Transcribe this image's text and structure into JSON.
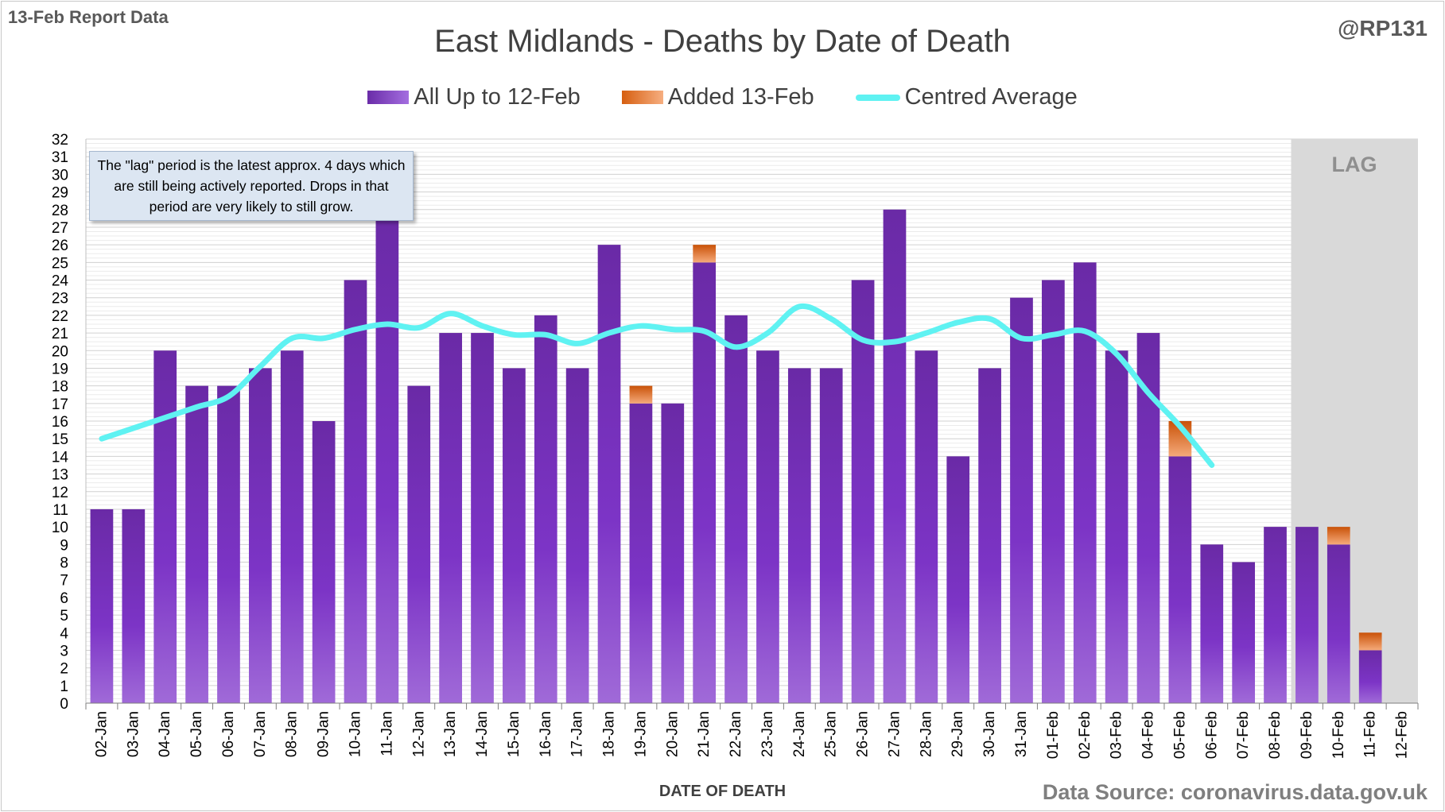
{
  "header": {
    "report_tag": "13-Feb Report Data",
    "author": "@RP131"
  },
  "note": "The \"lag\" period is the latest approx. 4 days which are still being actively reported.  Drops in that period are very likely to still grow.",
  "lag_label": "LAG",
  "source": "Data Source: coronavirus.data.gov.uk",
  "colors": {
    "purple": "#7b35c3",
    "orange": "#e77a30",
    "average": "#5ff2f2",
    "lag_shade": "#d9d9d9"
  },
  "chart_data": {
    "type": "bar",
    "stacked": true,
    "title": "East Midlands - Deaths by Date of Death",
    "xlabel": "DATE OF DEATH",
    "ylabel": "",
    "ylim": [
      0,
      32
    ],
    "yticks": [
      0,
      1,
      2,
      3,
      4,
      5,
      6,
      7,
      8,
      9,
      10,
      11,
      12,
      13,
      14,
      15,
      16,
      17,
      18,
      19,
      20,
      21,
      22,
      23,
      24,
      25,
      26,
      27,
      28,
      29,
      30,
      31,
      32
    ],
    "grid": true,
    "legend_position": "top",
    "lag_categories": [
      "09-Feb",
      "10-Feb",
      "11-Feb",
      "12-Feb"
    ],
    "categories": [
      "02-Jan",
      "03-Jan",
      "04-Jan",
      "05-Jan",
      "06-Jan",
      "07-Jan",
      "08-Jan",
      "09-Jan",
      "10-Jan",
      "11-Jan",
      "12-Jan",
      "13-Jan",
      "14-Jan",
      "15-Jan",
      "16-Jan",
      "17-Jan",
      "18-Jan",
      "19-Jan",
      "20-Jan",
      "21-Jan",
      "22-Jan",
      "23-Jan",
      "24-Jan",
      "25-Jan",
      "26-Jan",
      "27-Jan",
      "28-Jan",
      "29-Jan",
      "30-Jan",
      "31-Jan",
      "01-Feb",
      "02-Feb",
      "03-Feb",
      "04-Feb",
      "05-Feb",
      "06-Feb",
      "07-Feb",
      "08-Feb",
      "09-Feb",
      "10-Feb",
      "11-Feb",
      "12-Feb"
    ],
    "series": [
      {
        "name": "All Up to 12-Feb",
        "values": [
          11,
          11,
          20,
          18,
          18,
          19,
          20,
          16,
          24,
          28,
          18,
          21,
          21,
          19,
          22,
          19,
          26,
          17,
          17,
          25,
          22,
          20,
          19,
          19,
          24,
          28,
          20,
          14,
          19,
          23,
          24,
          25,
          20,
          21,
          14,
          9,
          8,
          10,
          10,
          9,
          3,
          0
        ]
      },
      {
        "name": "Added 13-Feb",
        "values": [
          0,
          0,
          0,
          0,
          0,
          0,
          0,
          0,
          0,
          0,
          0,
          0,
          0,
          0,
          0,
          0,
          0,
          1,
          0,
          1,
          0,
          0,
          0,
          0,
          0,
          0,
          0,
          0,
          0,
          0,
          0,
          0,
          0,
          0,
          2,
          0,
          0,
          0,
          0,
          1,
          1,
          0
        ]
      },
      {
        "name": "Centred Average",
        "type": "line",
        "values": [
          15.0,
          15.6,
          16.2,
          16.8,
          17.4,
          19.1,
          20.7,
          20.7,
          21.2,
          21.5,
          21.3,
          22.1,
          21.4,
          20.9,
          20.9,
          20.4,
          21.0,
          21.4,
          21.2,
          21.1,
          20.2,
          21.0,
          22.5,
          21.8,
          20.6,
          20.5,
          21.0,
          21.6,
          21.8,
          20.7,
          20.9,
          21.1,
          19.8,
          17.6,
          15.7,
          13.5,
          null,
          null,
          null,
          null,
          null,
          null
        ]
      }
    ]
  }
}
